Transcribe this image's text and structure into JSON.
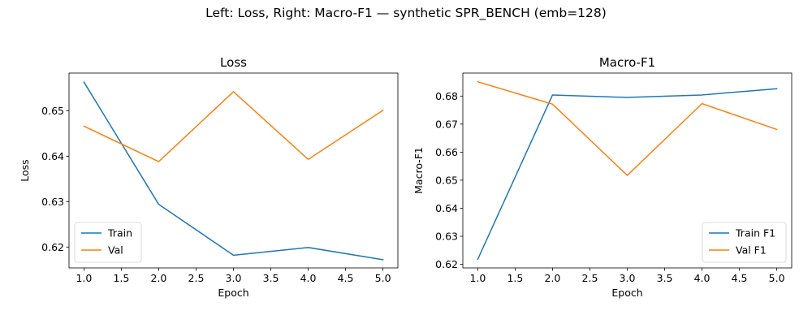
{
  "figure": {
    "suptitle": "Left: Loss, Right: Macro-F1 — synthetic SPR_BENCH (emb=128)"
  },
  "colors": {
    "train": "#1f77b4",
    "val": "#ff7f0e"
  },
  "chart_data": [
    {
      "type": "line",
      "title": "Loss",
      "xlabel": "Epoch",
      "ylabel": "Loss",
      "xlim": [
        0.8,
        5.2
      ],
      "ylim": [
        0.6154,
        0.6583
      ],
      "xticks": [
        1.0,
        1.5,
        2.0,
        2.5,
        3.0,
        3.5,
        4.0,
        4.5,
        5.0
      ],
      "xtick_labels": [
        "1.0",
        "1.5",
        "2.0",
        "2.5",
        "3.0",
        "3.5",
        "4.0",
        "4.5",
        "5.0"
      ],
      "yticks": [
        0.62,
        0.63,
        0.64,
        0.65
      ],
      "ytick_labels": [
        "0.62",
        "0.63",
        "0.64",
        "0.65"
      ],
      "legend": "lower-left",
      "grid": false,
      "x": [
        1,
        2,
        3,
        4,
        5
      ],
      "series": [
        {
          "name": "Train",
          "color": "#1f77b4",
          "values": [
            0.6563,
            0.6294,
            0.6182,
            0.6199,
            0.6172
          ]
        },
        {
          "name": "Val",
          "color": "#ff7f0e",
          "values": [
            0.6466,
            0.6388,
            0.6542,
            0.6393,
            0.6501
          ]
        }
      ]
    },
    {
      "type": "line",
      "title": "Macro-F1",
      "xlabel": "Epoch",
      "ylabel": "Macro-F1",
      "xlim": [
        0.8,
        5.2
      ],
      "ylim": [
        0.6187,
        0.6882
      ],
      "xticks": [
        1.0,
        1.5,
        2.0,
        2.5,
        3.0,
        3.5,
        4.0,
        4.5,
        5.0
      ],
      "xtick_labels": [
        "1.0",
        "1.5",
        "2.0",
        "2.5",
        "3.0",
        "3.5",
        "4.0",
        "4.5",
        "5.0"
      ],
      "yticks": [
        0.62,
        0.63,
        0.64,
        0.65,
        0.66,
        0.67,
        0.68
      ],
      "ytick_labels": [
        "0.62",
        "0.63",
        "0.64",
        "0.65",
        "0.66",
        "0.67",
        "0.68"
      ],
      "legend": "lower-right",
      "grid": false,
      "x": [
        1,
        2,
        3,
        4,
        5
      ],
      "series": [
        {
          "name": "Train F1",
          "color": "#1f77b4",
          "values": [
            0.6218,
            0.6804,
            0.6795,
            0.6804,
            0.6826
          ]
        },
        {
          "name": "Val F1",
          "color": "#ff7f0e",
          "values": [
            0.6851,
            0.6771,
            0.6517,
            0.6773,
            0.6681
          ]
        }
      ]
    }
  ]
}
